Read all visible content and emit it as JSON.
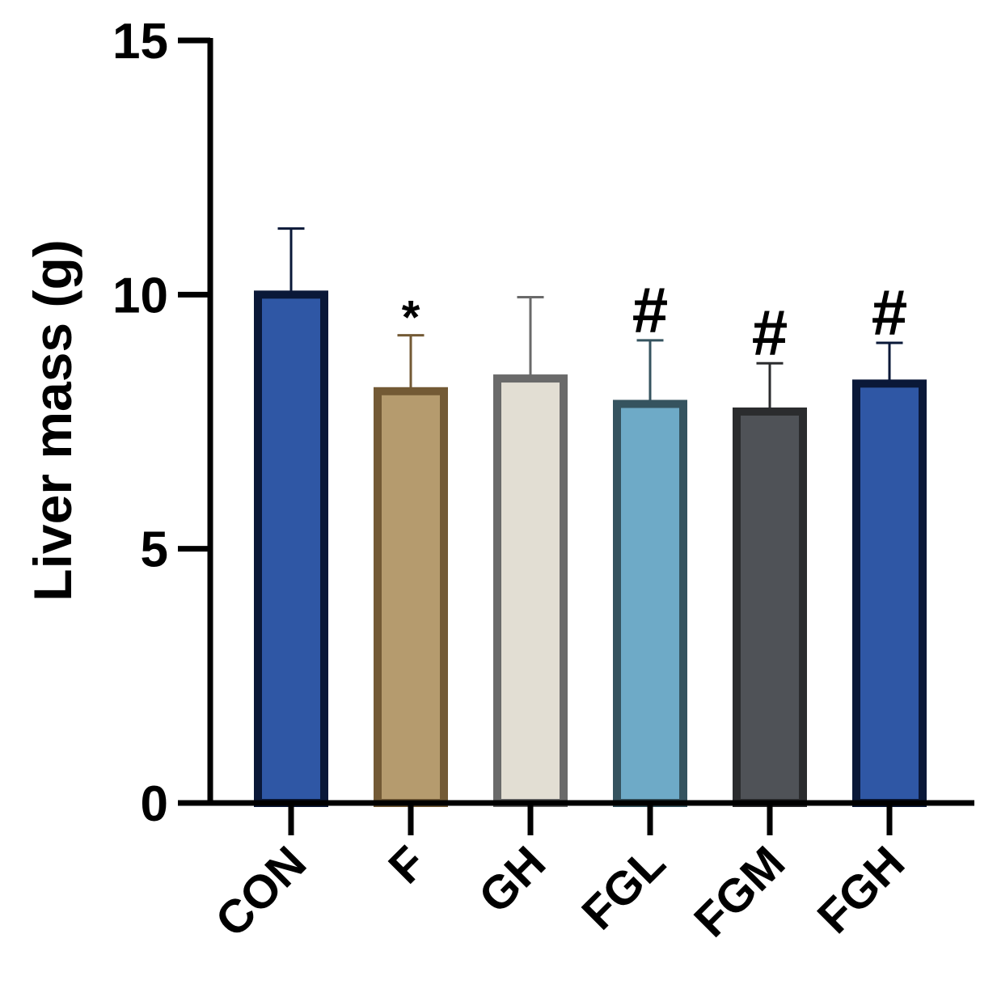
{
  "chart_data": {
    "type": "bar",
    "categories": [
      "CON",
      "F",
      "GH",
      "FGL",
      "FGM",
      "FGH"
    ],
    "values": [
      10.0,
      8.1,
      8.35,
      7.85,
      7.7,
      8.25
    ],
    "errors": [
      1.3,
      1.1,
      1.6,
      1.25,
      0.95,
      0.8
    ],
    "annotations": [
      "",
      "*",
      "",
      "#",
      "#",
      "#"
    ],
    "ylabel": "Liver mass (g)",
    "xlabel": "",
    "title": "",
    "ylim": [
      0,
      15
    ],
    "yticks": [
      "0",
      "5",
      "10",
      "15"
    ],
    "grid": false,
    "colors": {
      "fill": [
        "#2f57a5",
        "#b59b6e",
        "#e2ded3",
        "#6eaac7",
        "#4f5257",
        "#2f57a5"
      ],
      "edge": [
        "#0a1838",
        "#735a35",
        "#6a6a6a",
        "#35535f",
        "#2b2c2e",
        "#0a1838"
      ],
      "error": [
        "#0a1838",
        "#735a35",
        "#6a6a6a",
        "#35535f",
        "#2b2c2e",
        "#0a1838"
      ]
    }
  }
}
